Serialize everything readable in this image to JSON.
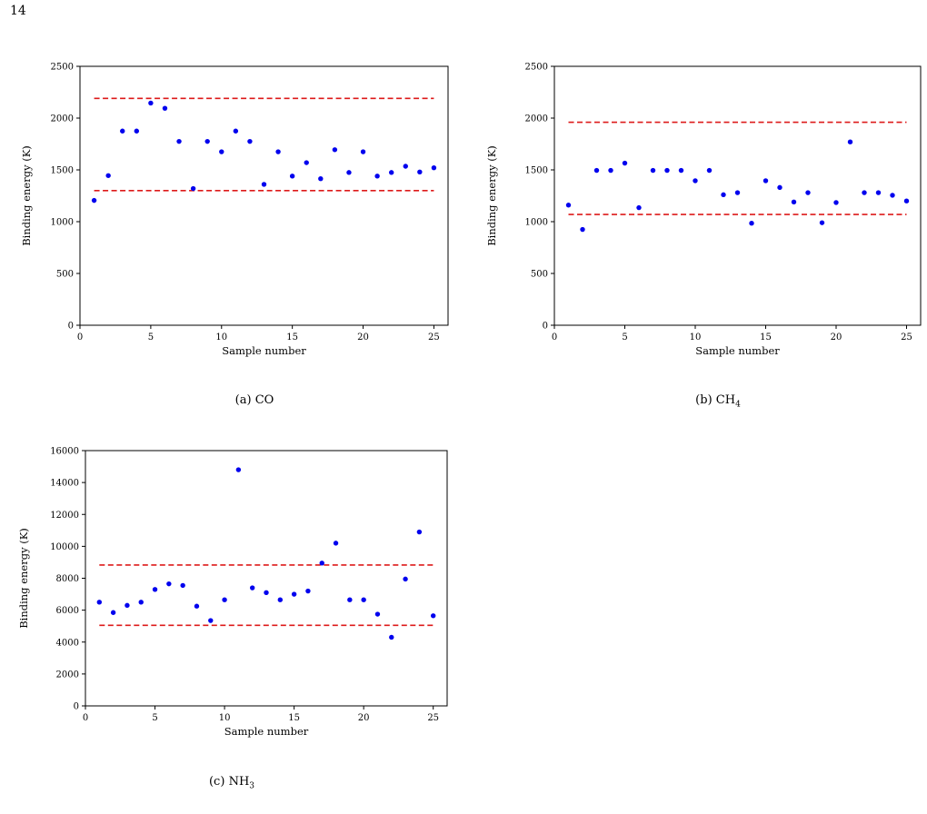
{
  "page_number": "14",
  "chart_data": [
    {
      "type": "scatter",
      "caption_label": "(a)",
      "caption_species": "CO",
      "caption_sub": "",
      "xlabel": "Sample number",
      "ylabel": "Binding energy (K)",
      "xlim": [
        0,
        26
      ],
      "ylim": [
        0,
        2500
      ],
      "xticks": [
        0,
        5,
        10,
        15,
        20,
        25
      ],
      "yticks": [
        0,
        500,
        1000,
        1500,
        2000,
        2500
      ],
      "x": [
        1,
        2,
        3,
        4,
        5,
        6,
        7,
        8,
        9,
        10,
        11,
        12,
        13,
        14,
        15,
        16,
        17,
        18,
        19,
        20,
        21,
        22,
        23,
        24,
        25
      ],
      "y": [
        1205,
        1445,
        1875,
        1875,
        2145,
        2095,
        1775,
        1320,
        1775,
        1675,
        1875,
        1775,
        1360,
        1675,
        1440,
        1570,
        1415,
        1695,
        1475,
        1675,
        1440,
        1475,
        1535,
        1480,
        1520
      ],
      "reference_lines": [
        2190,
        1300
      ],
      "reference_x_range": [
        1,
        25
      ],
      "point_color": "#0000ee",
      "line_color": "#dd1a1a",
      "grid": false,
      "legend": "none"
    },
    {
      "type": "scatter",
      "caption_label": "(b)",
      "caption_species": "CH",
      "caption_sub": "4",
      "xlabel": "Sample number",
      "ylabel": "Binding energy (K)",
      "xlim": [
        0,
        26
      ],
      "ylim": [
        0,
        2500
      ],
      "xticks": [
        0,
        5,
        10,
        15,
        20,
        25
      ],
      "yticks": [
        0,
        500,
        1000,
        1500,
        2000,
        2500
      ],
      "x": [
        1,
        2,
        3,
        4,
        5,
        6,
        7,
        8,
        9,
        10,
        11,
        12,
        13,
        14,
        15,
        16,
        17,
        18,
        19,
        20,
        21,
        22,
        23,
        24,
        25
      ],
      "y": [
        1160,
        925,
        1495,
        1495,
        1565,
        1135,
        1495,
        1495,
        1495,
        1395,
        1495,
        1260,
        1280,
        985,
        1395,
        1330,
        1190,
        1280,
        990,
        1185,
        1770,
        1280,
        1280,
        1255,
        1200
      ],
      "reference_lines": [
        1960,
        1070
      ],
      "reference_x_range": [
        1,
        25
      ],
      "point_color": "#0000ee",
      "line_color": "#dd1a1a",
      "grid": false,
      "legend": "none"
    },
    {
      "type": "scatter",
      "caption_label": "(c)",
      "caption_species": "NH",
      "caption_sub": "3",
      "xlabel": "Sample number",
      "ylabel": "Binding energy (K)",
      "xlim": [
        0,
        26
      ],
      "ylim": [
        0,
        16000
      ],
      "xticks": [
        0,
        5,
        10,
        15,
        20,
        25
      ],
      "yticks": [
        0,
        2000,
        4000,
        6000,
        8000,
        10000,
        12000,
        14000,
        16000
      ],
      "x": [
        1,
        2,
        3,
        4,
        5,
        6,
        7,
        8,
        9,
        10,
        11,
        12,
        13,
        14,
        15,
        16,
        17,
        18,
        19,
        20,
        21,
        22,
        23,
        24,
        25
      ],
      "y": [
        6500,
        5850,
        6300,
        6500,
        7300,
        7650,
        7550,
        6250,
        5350,
        6650,
        14800,
        7400,
        7100,
        6650,
        7000,
        7200,
        8950,
        10200,
        6650,
        6650,
        5750,
        4300,
        7950,
        10900,
        5650
      ],
      "reference_lines": [
        8830,
        5050
      ],
      "reference_x_range": [
        1,
        25
      ],
      "point_color": "#0000ee",
      "line_color": "#dd1a1a",
      "grid": false,
      "legend": "none"
    }
  ]
}
